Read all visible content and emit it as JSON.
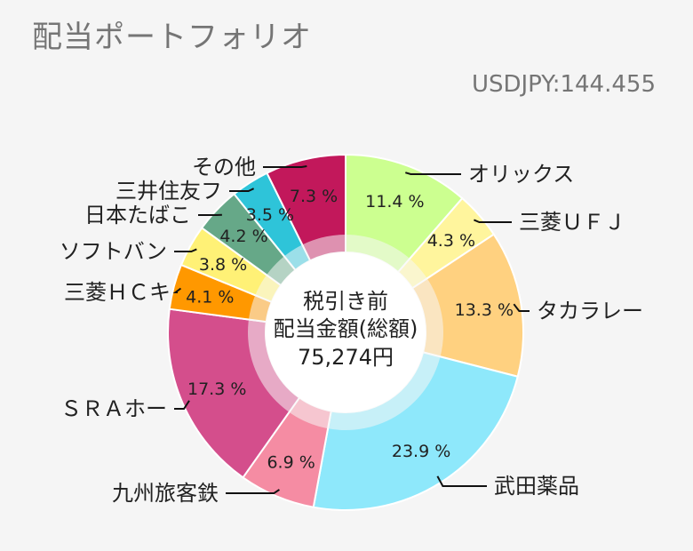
{
  "header": {
    "title": "配当ポートフォリオ",
    "rate": "USDJPY:144.455"
  },
  "center": {
    "line1": "税引き前",
    "line2": "配当金額(総額)",
    "line3": "75,274円"
  },
  "chart_data": {
    "type": "pie",
    "title": "",
    "value_unit": "%",
    "slices": [
      {
        "name": "オリックス",
        "value": 11.4,
        "label": "11.4 %",
        "color": "#ccff90"
      },
      {
        "name": "三菱ＵＦＪ",
        "value": 4.3,
        "label": "4.3 %",
        "color": "#fff59d"
      },
      {
        "name": "タカラレー",
        "value": 13.3,
        "label": "13.3 %",
        "color": "#ffd180"
      },
      {
        "name": "武田薬品",
        "value": 23.9,
        "label": "23.9 %",
        "color": "#8ee8fb"
      },
      {
        "name": "九州旅客鉄",
        "value": 6.9,
        "label": "6.9 %",
        "color": "#f58ca3"
      },
      {
        "name": "ＳＲＡホー",
        "value": 17.3,
        "label": "17.3 %",
        "color": "#d44e8c"
      },
      {
        "name": "三菱ＨＣキ",
        "value": 4.1,
        "label": "4.1 %",
        "color": "#ff9800"
      },
      {
        "name": "ソフトバン",
        "value": 3.8,
        "label": "3.8 %",
        "color": "#fff176"
      },
      {
        "name": "日本たばこ",
        "value": 4.2,
        "label": "4.2 %",
        "color": "#66a888"
      },
      {
        "name": "三井住友フ",
        "value": 3.5,
        "label": "3.5 %",
        "color": "#2ec4d9"
      },
      {
        "name": "その他",
        "value": 7.3,
        "label": "7.3 %",
        "color": "#c2185b"
      }
    ]
  }
}
